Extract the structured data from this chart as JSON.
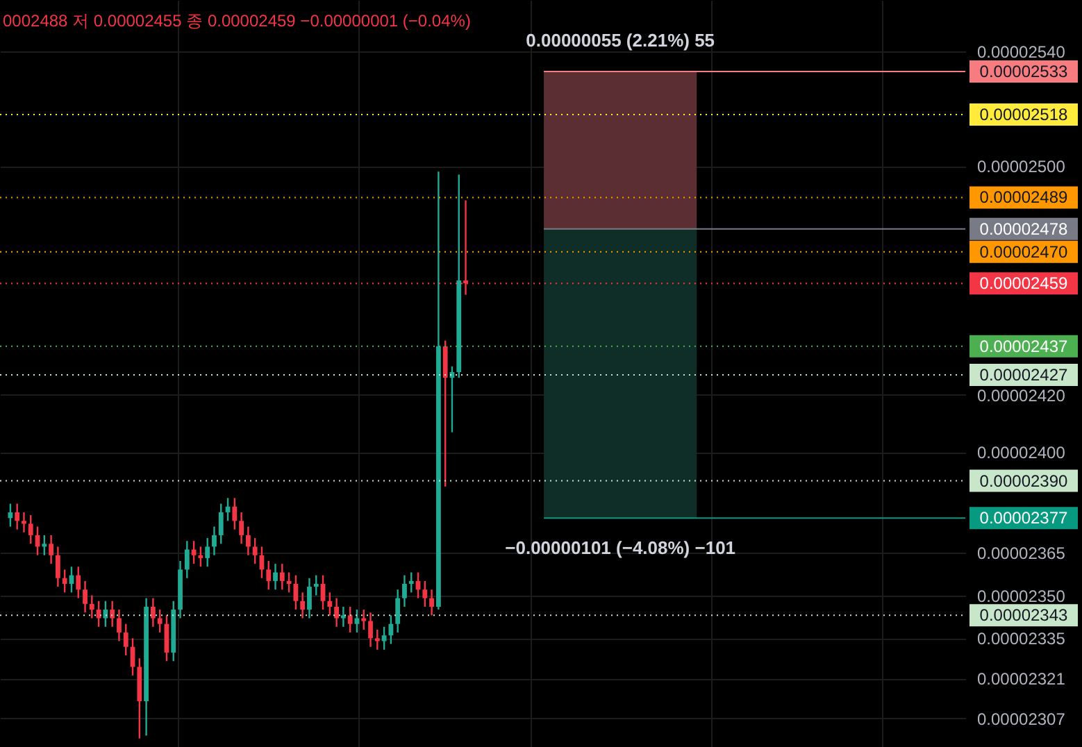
{
  "chart_data": {
    "type": "candlestick",
    "categories": [
      null,
      null,
      null,
      null,
      null,
      null,
      null,
      null,
      null,
      null,
      null,
      null,
      null,
      null,
      null,
      null,
      null,
      null,
      null,
      null,
      null,
      null,
      null,
      null,
      null,
      null,
      null,
      null,
      null,
      null,
      null,
      null,
      null,
      null,
      null,
      null,
      null,
      null,
      null,
      null,
      null,
      null,
      null,
      null,
      null,
      null,
      null,
      null,
      null,
      null,
      null,
      null,
      null,
      null,
      null,
      null,
      null,
      null,
      null,
      null,
      null,
      null,
      null,
      null,
      null,
      null,
      null,
      null,
      null,
      null,
      null,
      null,
      null,
      null,
      null,
      null,
      null,
      null,
      null,
      null,
      null,
      null,
      null,
      null,
      null,
      null,
      null,
      null,
      null,
      null,
      null,
      null,
      null,
      null,
      null,
      null,
      null,
      null,
      null,
      null,
      null,
      null,
      null,
      null,
      null,
      null,
      null,
      null,
      null,
      null,
      null,
      null,
      null,
      null,
      null,
      null,
      null,
      null,
      null,
      null,
      null,
      null,
      null,
      null,
      null,
      null,
      null,
      null,
      null,
      null,
      null,
      null,
      null,
      null,
      null,
      null,
      null,
      null,
      null,
      null
    ],
    "ohlc": [
      [
        2.377e-05,
        2.382e-05,
        2.374e-05,
        2.379e-05
      ],
      [
        2.379e-05,
        2.382e-05,
        2.373e-05,
        2.376e-05
      ],
      [
        2.376e-05,
        2.379e-05,
        2.372e-05,
        2.375e-05
      ],
      [
        2.375e-05,
        2.378e-05,
        2.368e-05,
        2.371e-05
      ],
      [
        2.371e-05,
        2.374e-05,
        2.364e-05,
        2.367e-05
      ],
      [
        2.367e-05,
        2.371e-05,
        2.364e-05,
        2.368e-05
      ],
      [
        2.368e-05,
        2.371e-05,
        2.361e-05,
        2.364e-05
      ],
      [
        2.364e-05,
        2.367e-05,
        2.353e-05,
        2.356e-05
      ],
      [
        2.356e-05,
        2.359e-05,
        2.351e-05,
        2.354e-05
      ],
      [
        2.354e-05,
        2.36e-05,
        2.351e-05,
        2.357e-05
      ],
      [
        2.357e-05,
        2.36e-05,
        2.349e-05,
        2.352e-05
      ],
      [
        2.352e-05,
        2.355e-05,
        2.344e-05,
        2.347e-05
      ],
      [
        2.347e-05,
        2.35e-05,
        2.342e-05,
        2.345e-05
      ],
      [
        2.345e-05,
        2.348e-05,
        2.339e-05,
        2.342e-05
      ],
      [
        2.342e-05,
        2.348e-05,
        2.339e-05,
        2.345e-05
      ],
      [
        2.345e-05,
        2.348e-05,
        2.339e-05,
        2.342e-05
      ],
      [
        2.342e-05,
        2.345e-05,
        2.334e-05,
        2.337e-05
      ],
      [
        2.337e-05,
        2.34e-05,
        2.329e-05,
        2.332e-05
      ],
      [
        2.332e-05,
        2.335e-05,
        2.322e-05,
        2.325e-05
      ],
      [
        2.325e-05,
        2.328e-05,
        2.3e-05,
        2.313e-05
      ],
      [
        2.313e-05,
        2.349e-05,
        2.301e-05,
        2.346e-05
      ],
      [
        2.346e-05,
        2.349e-05,
        2.339e-05,
        2.342e-05
      ],
      [
        2.342e-05,
        2.345e-05,
        2.337e-05,
        2.34e-05
      ],
      [
        2.34e-05,
        2.343e-05,
        2.327e-05,
        2.33e-05
      ],
      [
        2.33e-05,
        2.348e-05,
        2.327e-05,
        2.345e-05
      ],
      [
        2.345e-05,
        2.362e-05,
        2.342e-05,
        2.359e-05
      ],
      [
        2.359e-05,
        2.369e-05,
        2.356e-05,
        2.366e-05
      ],
      [
        2.366e-05,
        2.369e-05,
        2.361e-05,
        2.364e-05
      ],
      [
        2.364e-05,
        2.367e-05,
        2.36e-05,
        2.363e-05
      ],
      [
        2.363e-05,
        2.37e-05,
        2.36e-05,
        2.367e-05
      ],
      [
        2.367e-05,
        2.374e-05,
        2.364e-05,
        2.371e-05
      ],
      [
        2.371e-05,
        2.382e-05,
        2.368e-05,
        2.379e-05
      ],
      [
        2.379e-05,
        2.384e-05,
        2.376e-05,
        2.381e-05
      ],
      [
        2.381e-05,
        2.384e-05,
        2.373e-05,
        2.376e-05
      ],
      [
        2.376e-05,
        2.379e-05,
        2.368e-05,
        2.371e-05
      ],
      [
        2.371e-05,
        2.374e-05,
        2.364e-05,
        2.367e-05
      ],
      [
        2.367e-05,
        2.37e-05,
        2.361e-05,
        2.364e-05
      ],
      [
        2.364e-05,
        2.367e-05,
        2.356e-05,
        2.359e-05
      ],
      [
        2.359e-05,
        2.362e-05,
        2.352e-05,
        2.355e-05
      ],
      [
        2.355e-05,
        2.361e-05,
        2.352e-05,
        2.358e-05
      ],
      [
        2.358e-05,
        2.361e-05,
        2.352e-05,
        2.355e-05
      ],
      [
        2.355e-05,
        2.358e-05,
        2.351e-05,
        2.354e-05
      ],
      [
        2.354e-05,
        2.357e-05,
        2.345e-05,
        2.348e-05
      ],
      [
        2.348e-05,
        2.351e-05,
        2.342e-05,
        2.345e-05
      ],
      [
        2.345e-05,
        2.356e-05,
        2.342e-05,
        2.353e-05
      ],
      [
        2.353e-05,
        2.357e-05,
        2.35e-05,
        2.354e-05
      ],
      [
        2.354e-05,
        2.357e-05,
        2.345e-05,
        2.348e-05
      ],
      [
        2.348e-05,
        2.351e-05,
        2.343e-05,
        2.346e-05
      ],
      [
        2.346e-05,
        2.349e-05,
        2.339e-05,
        2.342e-05
      ],
      [
        2.342e-05,
        2.346e-05,
        2.339e-05,
        2.343e-05
      ],
      [
        2.343e-05,
        2.346e-05,
        2.337e-05,
        2.34e-05
      ],
      [
        2.34e-05,
        2.345e-05,
        2.337e-05,
        2.342e-05
      ],
      [
        2.342e-05,
        2.345e-05,
        2.338e-05,
        2.341e-05
      ],
      [
        2.341e-05,
        2.344e-05,
        2.332e-05,
        2.335e-05
      ],
      [
        2.335e-05,
        2.338e-05,
        2.331e-05,
        2.334e-05
      ],
      [
        2.334e-05,
        2.339e-05,
        2.331e-05,
        2.336e-05
      ],
      [
        2.336e-05,
        2.343e-05,
        2.333e-05,
        2.34e-05
      ],
      [
        2.34e-05,
        2.352e-05,
        2.337e-05,
        2.349e-05
      ],
      [
        2.349e-05,
        2.357e-05,
        2.346e-05,
        2.354e-05
      ],
      [
        2.354e-05,
        2.358e-05,
        2.351e-05,
        2.355e-05
      ],
      [
        2.355e-05,
        2.358e-05,
        2.349e-05,
        2.352e-05
      ],
      [
        2.352e-05,
        2.355e-05,
        2.346e-05,
        2.349e-05
      ],
      [
        2.349e-05,
        2.352e-05,
        2.343e-05,
        2.346e-05
      ],
      [
        2.346e-05,
        2.498e-05,
        2.345e-05,
        2.437e-05
      ],
      [
        2.437e-05,
        2.439e-05,
        2.388e-05,
        2.426e-05
      ],
      [
        2.426e-05,
        2.43e-05,
        2.407e-05,
        2.428e-05
      ],
      [
        2.428e-05,
        2.497e-05,
        2.426e-05,
        2.46e-05
      ],
      [
        2.46e-05,
        2.488e-05,
        2.455e-05,
        2.459e-05
      ],
      null,
      null,
      null,
      null,
      null,
      null,
      null,
      null,
      null,
      null,
      null,
      null,
      null,
      null,
      null,
      null,
      null,
      null,
      null,
      null,
      null,
      null,
      null,
      null,
      null,
      null,
      null,
      null,
      null,
      null,
      null,
      null,
      null,
      null,
      null,
      null,
      null,
      null,
      null,
      null,
      null,
      null,
      null,
      null,
      null,
      null,
      null,
      null,
      null,
      null,
      null,
      null,
      null,
      null,
      null,
      null,
      null,
      null,
      null,
      null,
      null,
      null,
      null,
      null,
      null,
      null,
      null,
      null,
      null,
      null,
      null,
      null
    ],
    "ylim": [
      2.297e-05,
      2.558e-05
    ],
    "yticks": [
      {
        "value": 2.54e-05,
        "label": "0.00002540"
      },
      {
        "value": 2.5e-05,
        "label": "0.00002500"
      },
      {
        "value": 2.42e-05,
        "label": "0.00002420"
      },
      {
        "value": 2.4e-05,
        "label": "0.00002400"
      },
      {
        "value": 2.365e-05,
        "label": "0.00002365"
      },
      {
        "value": 2.35e-05,
        "label": "0.00002350"
      },
      {
        "value": 2.335e-05,
        "label": "0.00002335"
      },
      {
        "value": 2.321e-05,
        "label": "0.00002321"
      },
      {
        "value": 2.307e-05,
        "label": "0.00002307"
      }
    ],
    "grid": true,
    "tick_labels": "y",
    "bands": [
      {
        "axis": "y",
        "from": 2.478e-05,
        "to": 2.533e-05,
        "color": "#5b2e33"
      },
      {
        "axis": "y",
        "from": 2.377e-05,
        "to": 2.478e-05,
        "color": "#102e28"
      }
    ],
    "ref_lines": [
      {
        "axis": "y",
        "value": 2.533e-05,
        "label": "0.00002533",
        "color": "#f77c80",
        "line_style": "solid"
      },
      {
        "axis": "y",
        "value": 2.518e-05,
        "label": "0.00002518",
        "color": "#ffeb3b",
        "line_style": "dotted"
      },
      {
        "axis": "y",
        "value": 2.489e-05,
        "label": "0.00002489",
        "color": "#ff9800",
        "line_style": "dotted"
      },
      {
        "axis": "y",
        "value": 2.478e-05,
        "label": "0.00002478",
        "color": "#787b86",
        "line_style": "solid"
      },
      {
        "axis": "y",
        "value": 2.47e-05,
        "label": "0.00002470",
        "color": "#ff9800",
        "line_style": "dotted"
      },
      {
        "axis": "y",
        "value": 2.459e-05,
        "label": "0.00002459",
        "color": "#f23645",
        "line_style": "dotted"
      },
      {
        "axis": "y",
        "value": 2.437e-05,
        "label": "0.00002437",
        "color": "#4caf50",
        "line_style": "dotted"
      },
      {
        "axis": "y",
        "value": 2.427e-05,
        "label": "0.00002427",
        "color": "#c8e6c9",
        "line_style": "dotted"
      },
      {
        "axis": "y",
        "value": 2.39e-05,
        "label": "0.00002390",
        "color": "#c8e6c9",
        "line_style": "dotted"
      },
      {
        "axis": "y",
        "value": 2.377e-05,
        "label": "0.00002377",
        "color": "#089981",
        "line_style": "solid"
      },
      {
        "axis": "y",
        "value": 2.343e-05,
        "label": "0.00002343",
        "color": "#c8e6c9",
        "line_style": "dotted"
      }
    ],
    "annotations": [
      "0002488 저 0.00002455 종 0.00002459 −0.00000001 (−0.04%)",
      {
        "text": "0.00000055 (2.21%) 55",
        "y": 2.533e-05
      },
      {
        "text": "−0.00000101 (−4.08%) −101",
        "y": 2.377e-05
      }
    ]
  }
}
